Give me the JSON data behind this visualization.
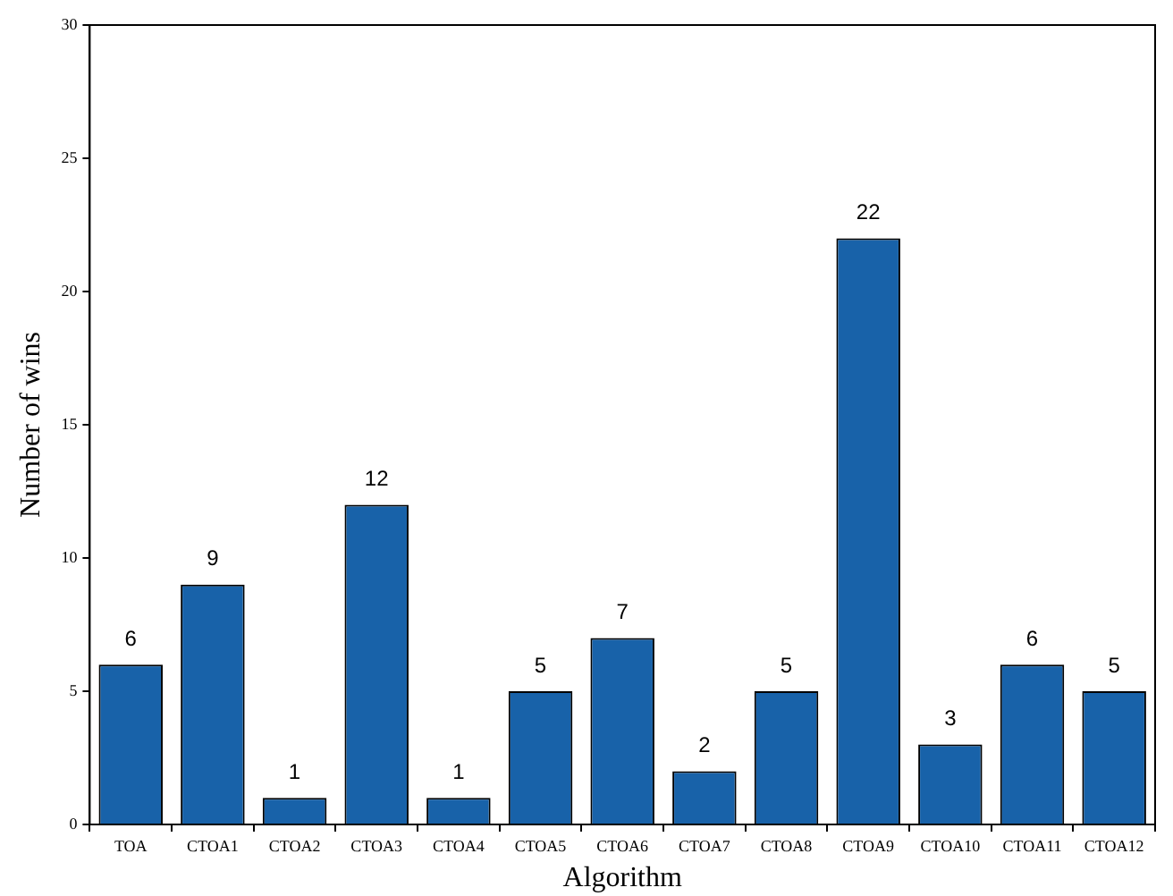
{
  "chart_data": {
    "type": "bar",
    "xlabel": "Algorithm",
    "ylabel": "Number of wins",
    "categories": [
      "TOA",
      "CTOA1",
      "CTOA2",
      "CTOA3",
      "CTOA4",
      "CTOA5",
      "CTOA6",
      "CTOA7",
      "CTOA8",
      "CTOA9",
      "CTOA10",
      "CTOA11",
      "CTOA12"
    ],
    "values": [
      6,
      9,
      1,
      12,
      1,
      5,
      7,
      2,
      5,
      22,
      3,
      6,
      5
    ],
    "color": "#1862a9",
    "ylim": [
      0,
      30
    ],
    "yticks": [
      0,
      5,
      10,
      15,
      20,
      25,
      30
    ],
    "data_labels": true,
    "legend": false
  }
}
